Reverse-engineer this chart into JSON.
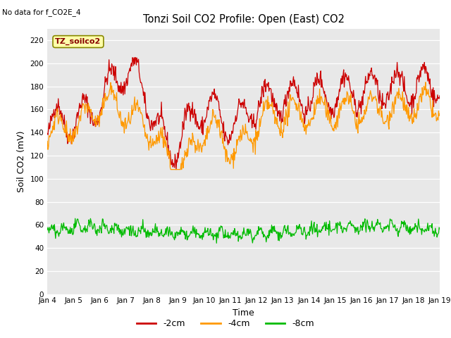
{
  "title": "Tonzi Soil CO2 Profile: Open (East) CO2",
  "subtitle": "No data for f_CO2E_4",
  "xlabel": "Time",
  "ylabel": "Soil CO2 (mV)",
  "ylim": [
    0,
    230
  ],
  "yticks": [
    0,
    20,
    40,
    60,
    80,
    100,
    120,
    140,
    160,
    180,
    200,
    220
  ],
  "x_labels": [
    "Jan 4",
    "Jan 5",
    "Jan 6",
    "Jan 7",
    "Jan 8",
    "Jan 9",
    "Jan 10",
    "Jan 11",
    "Jan 12",
    "Jan 13",
    "Jan 14",
    "Jan 15",
    "Jan 16",
    "Jan 17",
    "Jan 18",
    "Jan 19"
  ],
  "legend_entries": [
    "-2cm",
    "-4cm",
    "-8cm"
  ],
  "legend_colors": [
    "#cc0000",
    "#ff9900",
    "#00bb00"
  ],
  "line_colors": [
    "#cc0000",
    "#ff9900",
    "#00bb00"
  ],
  "fig_bg_color": "#ffffff",
  "plot_bg_color": "#e8e8e8",
  "legend_box_fill": "#ffffaa",
  "legend_box_edge": "#888800",
  "legend_box_label": "TZ_soilco2",
  "legend_text_color": "#880000",
  "grid_color": "#ffffff",
  "n_points": 720,
  "seed": 42
}
